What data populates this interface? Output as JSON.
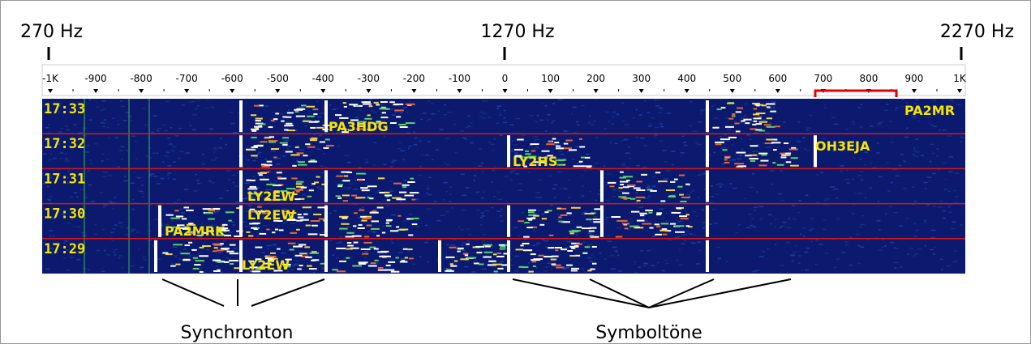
{
  "header": {
    "left_freq": "270 Hz",
    "center_freq": "1270 Hz",
    "right_freq": "2270 Hz"
  },
  "scale": {
    "labels": [
      "-1K",
      "-900",
      "-800",
      "-700",
      "-600",
      "-500",
      "-400",
      "-300",
      "-200",
      "-100",
      "0",
      "100",
      "200",
      "300",
      "400",
      "500",
      "600",
      "700",
      "800",
      "900",
      "1K"
    ]
  },
  "waterfall": {
    "times": [
      "17:33",
      "17:32",
      "17:31",
      "17:30",
      "17:29"
    ],
    "callsigns": [
      "PA3HDG",
      "PA2MR",
      "LY2HS",
      "OH3EJA",
      "LY2EW",
      "LY2EW",
      "PA2MRK",
      "LY2EW"
    ]
  },
  "annotations": {
    "sync": "Synchronton",
    "symbols": "Symboltöne"
  }
}
